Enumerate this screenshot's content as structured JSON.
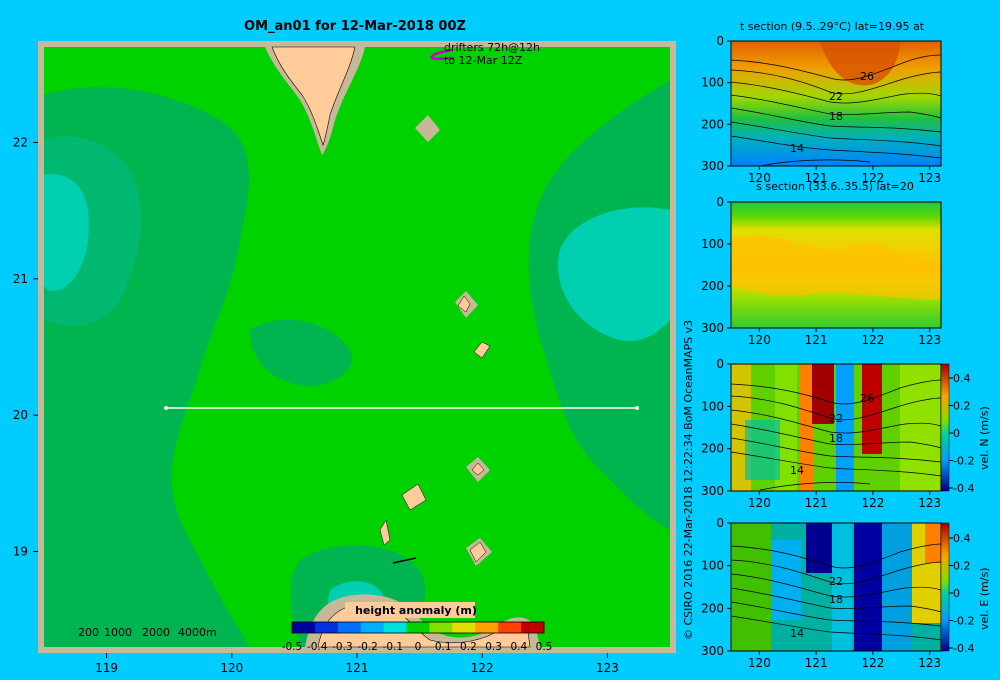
{
  "title": "OM_an01 for 12-Mar-2018 00Z",
  "colors": {
    "background": "#00ccff",
    "frame": "#c8b89a",
    "sea_base": "#00d200",
    "sea_deep": "#00b450",
    "sea_deeper": "#00b870",
    "sea_cyan": "#00d0b0",
    "land": "#ffcc99",
    "shelf": "#c8b89a",
    "drifter": "#cc00cc",
    "section_line": "#ffffff"
  },
  "map": {
    "drifter_note_line1": "drifters 72h@12h",
    "drifter_note_line2": "to 12-Mar 12Z",
    "depth_legend": [
      "200",
      "1000",
      "2000",
      "4000m"
    ],
    "colorbar_title": "height anomaly (m)",
    "colorbar_ticks": [
      "-0.5",
      "-0.4",
      "-0.3",
      "-0.2",
      "-0.1",
      "0",
      "0.1",
      "0.2",
      "0.3",
      "0.4",
      "0.5"
    ],
    "colorbar_colors": [
      "#0000a0",
      "#0030e0",
      "#0070ff",
      "#00b0ff",
      "#00e0e0",
      "#00d200",
      "#80e000",
      "#e0e000",
      "#ffa000",
      "#ff4000",
      "#c00000"
    ],
    "credit": "© CSIRO 2016   22-Mar-2018 12:22:34 BoM OceanMAPS v3"
  },
  "chart_data": [
    {
      "type": "heatmap",
      "name": "height anomaly map",
      "title": "OM_an01 for 12-Mar-2018 00Z",
      "xlabel": "",
      "ylabel": "",
      "xlim": [
        118.5,
        123.5
      ],
      "ylim": [
        18.3,
        22.7
      ],
      "xticks": [
        "119",
        "120",
        "121",
        "122",
        "123"
      ],
      "yticks": [
        "19",
        "20",
        "21",
        "22"
      ],
      "section_line": {
        "lat": 20,
        "lon_start": 119.5,
        "lon_end": 123.2
      },
      "colorbar": {
        "label": "height anomaly (m)",
        "range": [
          -0.5,
          0.5
        ]
      }
    },
    {
      "type": "heatmap",
      "title": "t section (9.5..29°C) lat=19.95 at",
      "xlim": [
        119.5,
        123.2
      ],
      "ylim": [
        300,
        0
      ],
      "xticks": [
        "120",
        "121",
        "122",
        "123"
      ],
      "yticks": [
        "0",
        "100",
        "200",
        "300"
      ],
      "contour_labels": [
        "26",
        "22",
        "18",
        "14"
      ]
    },
    {
      "type": "heatmap",
      "title": "s section (33.6..35.5) lat=20",
      "xlim": [
        119.5,
        123.2
      ],
      "ylim": [
        300,
        0
      ],
      "xticks": [
        "120",
        "121",
        "122",
        "123"
      ],
      "yticks": [
        "0",
        "100",
        "200",
        "300"
      ]
    },
    {
      "type": "heatmap",
      "title": "",
      "colorbar_label": "vel. N (m/s)",
      "colorbar_range": [
        -0.4,
        0.4
      ],
      "colorbar_ticks": [
        "0.4",
        "0.2",
        "0",
        "-0.2",
        "-0.4"
      ],
      "xlim": [
        119.5,
        123.2
      ],
      "ylim": [
        300,
        0
      ],
      "xticks": [
        "120",
        "121",
        "122",
        "123"
      ],
      "yticks": [
        "0",
        "100",
        "200",
        "300"
      ],
      "contour_labels": [
        "26",
        "22",
        "18",
        "14"
      ]
    },
    {
      "type": "heatmap",
      "title": "",
      "colorbar_label": "vel. E (m/s)",
      "colorbar_range": [
        -0.4,
        0.4
      ],
      "colorbar_ticks": [
        "0.4",
        "0.2",
        "0",
        "-0.2",
        "-0.4"
      ],
      "xlim": [
        119.5,
        123.2
      ],
      "ylim": [
        300,
        0
      ],
      "xticks": [
        "120",
        "121",
        "122",
        "123"
      ],
      "yticks": [
        "0",
        "100",
        "200",
        "300"
      ],
      "contour_labels": [
        "22",
        "18",
        "14"
      ]
    }
  ]
}
